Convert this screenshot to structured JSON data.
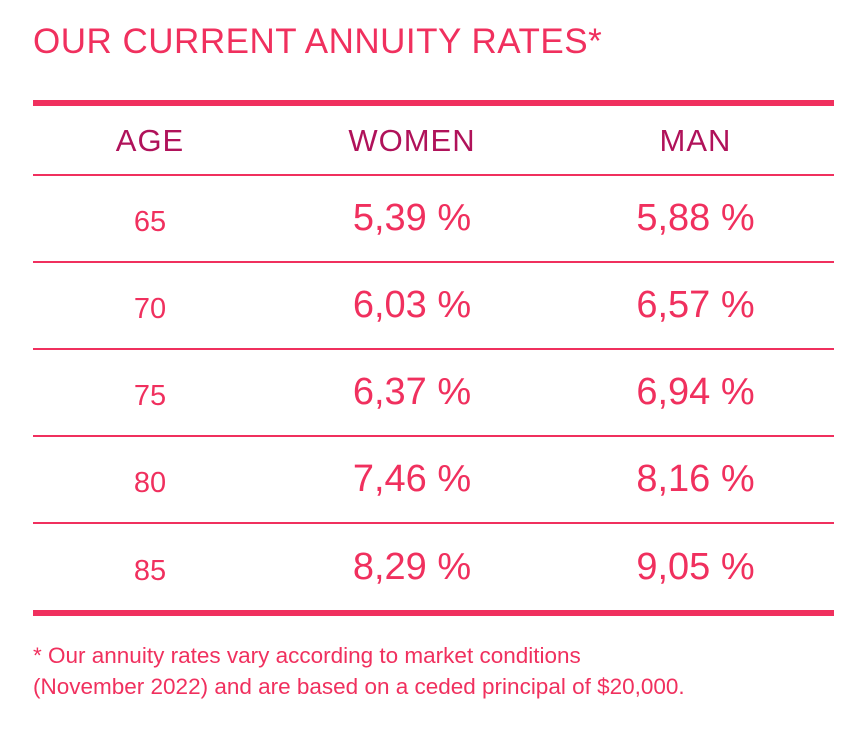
{
  "title": "OUR CURRENT ANNUITY RATES*",
  "table": {
    "headers": {
      "age": "AGE",
      "women": "WOMEN",
      "man": "MAN"
    },
    "rows": [
      {
        "age": "65",
        "women": "5,39 %",
        "man": "5,88 %"
      },
      {
        "age": "70",
        "women": "6,03 %",
        "man": "6,57 %"
      },
      {
        "age": "75",
        "women": "6,37 %",
        "man": "6,94 %"
      },
      {
        "age": "80",
        "women": "7,46 %",
        "man": "8,16 %"
      },
      {
        "age": "85",
        "women": "8,29 %",
        "man": "9,05 %"
      }
    ]
  },
  "footnote": {
    "line1": "* Our annuity rates vary according to market conditions",
    "line2": "(November 2022) and are based on a ceded principal of $20,000."
  },
  "colors": {
    "accent": "#f0305e",
    "header_text": "#b0125a",
    "background": "#ffffff"
  }
}
